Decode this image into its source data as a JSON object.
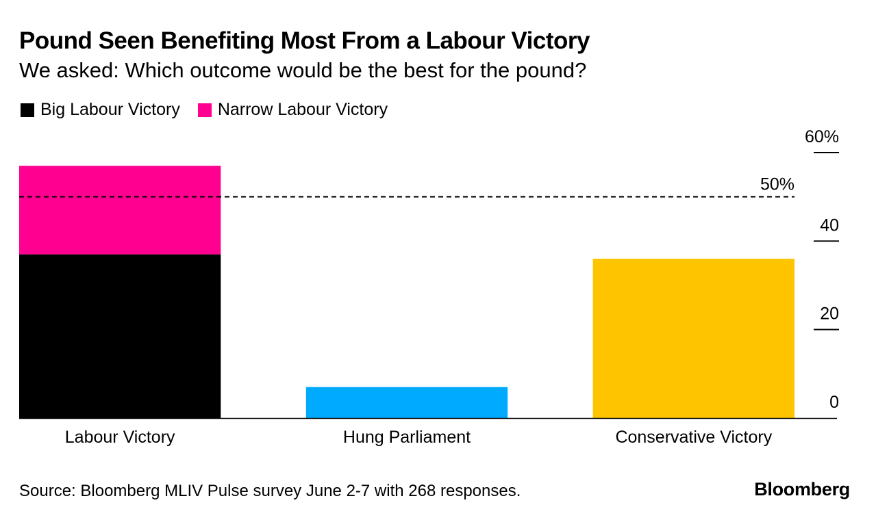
{
  "header": {
    "title": "Pound Seen Benefiting Most From a Labour Victory",
    "subtitle": "We asked: Which outcome would be the best for the pound?"
  },
  "legend": [
    {
      "label": "Big Labour Victory",
      "color": "#000000"
    },
    {
      "label": "Narrow Labour Victory",
      "color": "#ff0090"
    }
  ],
  "footer": {
    "source": "Source: Bloomberg MLIV Pulse survey June 2-7 with 268 responses.",
    "brand": "Bloomberg"
  },
  "chart_data": {
    "type": "bar",
    "stacked": true,
    "title": "Pound Seen Benefiting Most From a Labour Victory",
    "categories": [
      "Labour Victory",
      "Hung Parliament",
      "Conservative Victory"
    ],
    "series": [
      {
        "name": "Big Labour Victory",
        "color": "#000000",
        "values": [
          37,
          null,
          null
        ]
      },
      {
        "name": "Narrow Labour Victory",
        "color": "#ff0090",
        "values": [
          20,
          null,
          null
        ]
      },
      {
        "name": "Hung Parliament",
        "color": "#00aaff",
        "values": [
          null,
          7,
          null
        ]
      },
      {
        "name": "Conservative Victory",
        "color": "#ffc400",
        "values": [
          null,
          null,
          36
        ]
      }
    ],
    "ylim": [
      0,
      60
    ],
    "yticks": [
      {
        "value": 0,
        "label": "0"
      },
      {
        "value": 20,
        "label": "20"
      },
      {
        "value": 40,
        "label": "40"
      },
      {
        "value": 60,
        "label": "60%"
      }
    ],
    "reference_line": {
      "value": 50,
      "label": "50%",
      "style": "dashed"
    },
    "y_axis_side": "right",
    "grid": false,
    "xlabel": "",
    "ylabel": ""
  }
}
